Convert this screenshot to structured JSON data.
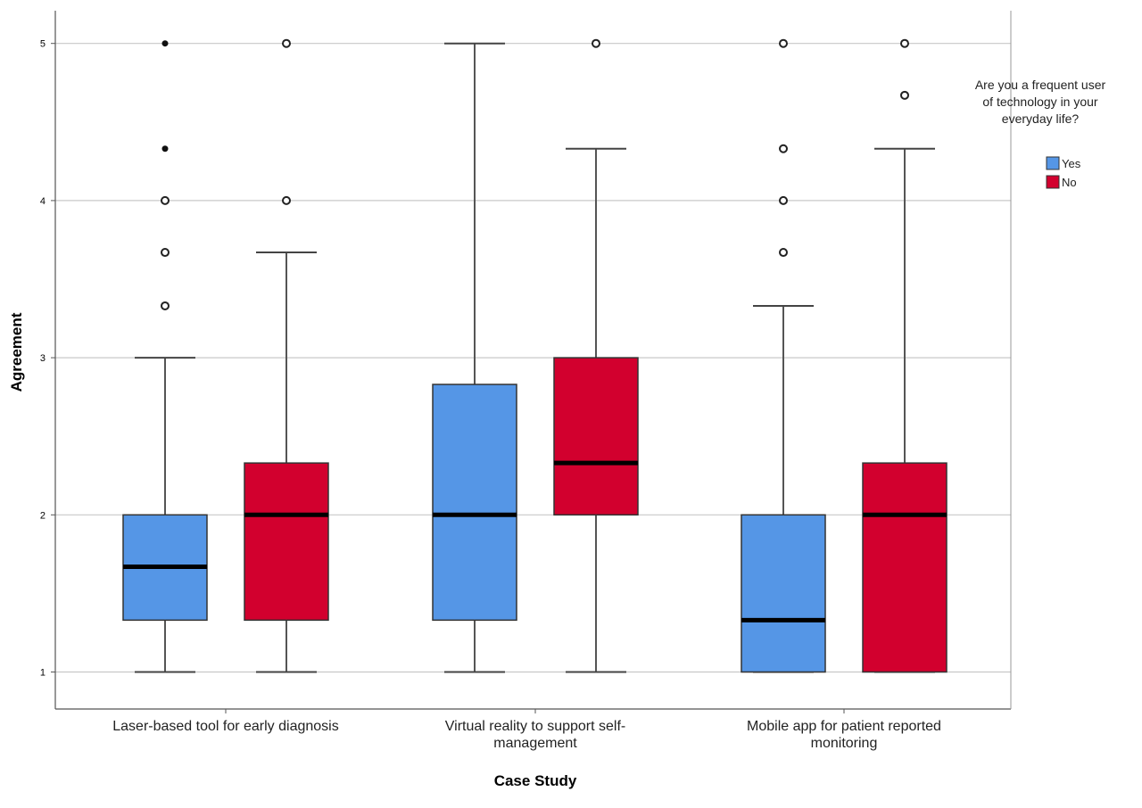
{
  "chart_data": {
    "type": "boxplot",
    "xlabel": "Case Study",
    "ylabel": "Agreement",
    "ylim": [
      0.8,
      5.1
    ],
    "yticks": [
      1,
      2,
      3,
      4,
      5
    ],
    "grid": "horizontal",
    "legend": {
      "title_lines": [
        "Are you a frequent user",
        "of technology in your",
        "everyday life?"
      ],
      "placement": "right"
    },
    "categories": [
      {
        "lines": [
          "Laser-based tool for early diagnosis"
        ]
      },
      {
        "lines": [
          "Virtual reality to support self-",
          "management"
        ]
      },
      {
        "lines": [
          "Mobile app for patient reported",
          "monitoring"
        ]
      }
    ],
    "series": [
      {
        "name": "Yes",
        "color": "#5596e6",
        "boxes": [
          {
            "min": 1,
            "q1": 1.33,
            "median": 1.67,
            "q3": 2,
            "max": 3,
            "outliers": [
              3.33,
              3.67,
              4
            ],
            "extremes": [
              4.33,
              5
            ]
          },
          {
            "min": 1,
            "q1": 1.33,
            "median": 2,
            "q3": 2.83,
            "max": 5,
            "outliers": [],
            "extremes": []
          },
          {
            "min": 1,
            "q1": 1,
            "median": 1.33,
            "q3": 2,
            "max": 3.33,
            "outliers": [
              3.67,
              4,
              4.33,
              5
            ],
            "extremes": []
          }
        ]
      },
      {
        "name": "No",
        "color": "#d2002e",
        "boxes": [
          {
            "min": 1,
            "q1": 1.33,
            "median": 2,
            "q3": 2.33,
            "max": 3.67,
            "outliers": [
              4,
              5
            ],
            "extremes": []
          },
          {
            "min": 1,
            "q1": 2,
            "median": 2.33,
            "q3": 3,
            "max": 4.33,
            "outliers": [
              5
            ],
            "extremes": []
          },
          {
            "min": 1,
            "q1": 1,
            "median": 2,
            "q3": 2.33,
            "max": 4.33,
            "outliers": [
              4.67,
              5
            ],
            "extremes": []
          }
        ]
      }
    ]
  }
}
